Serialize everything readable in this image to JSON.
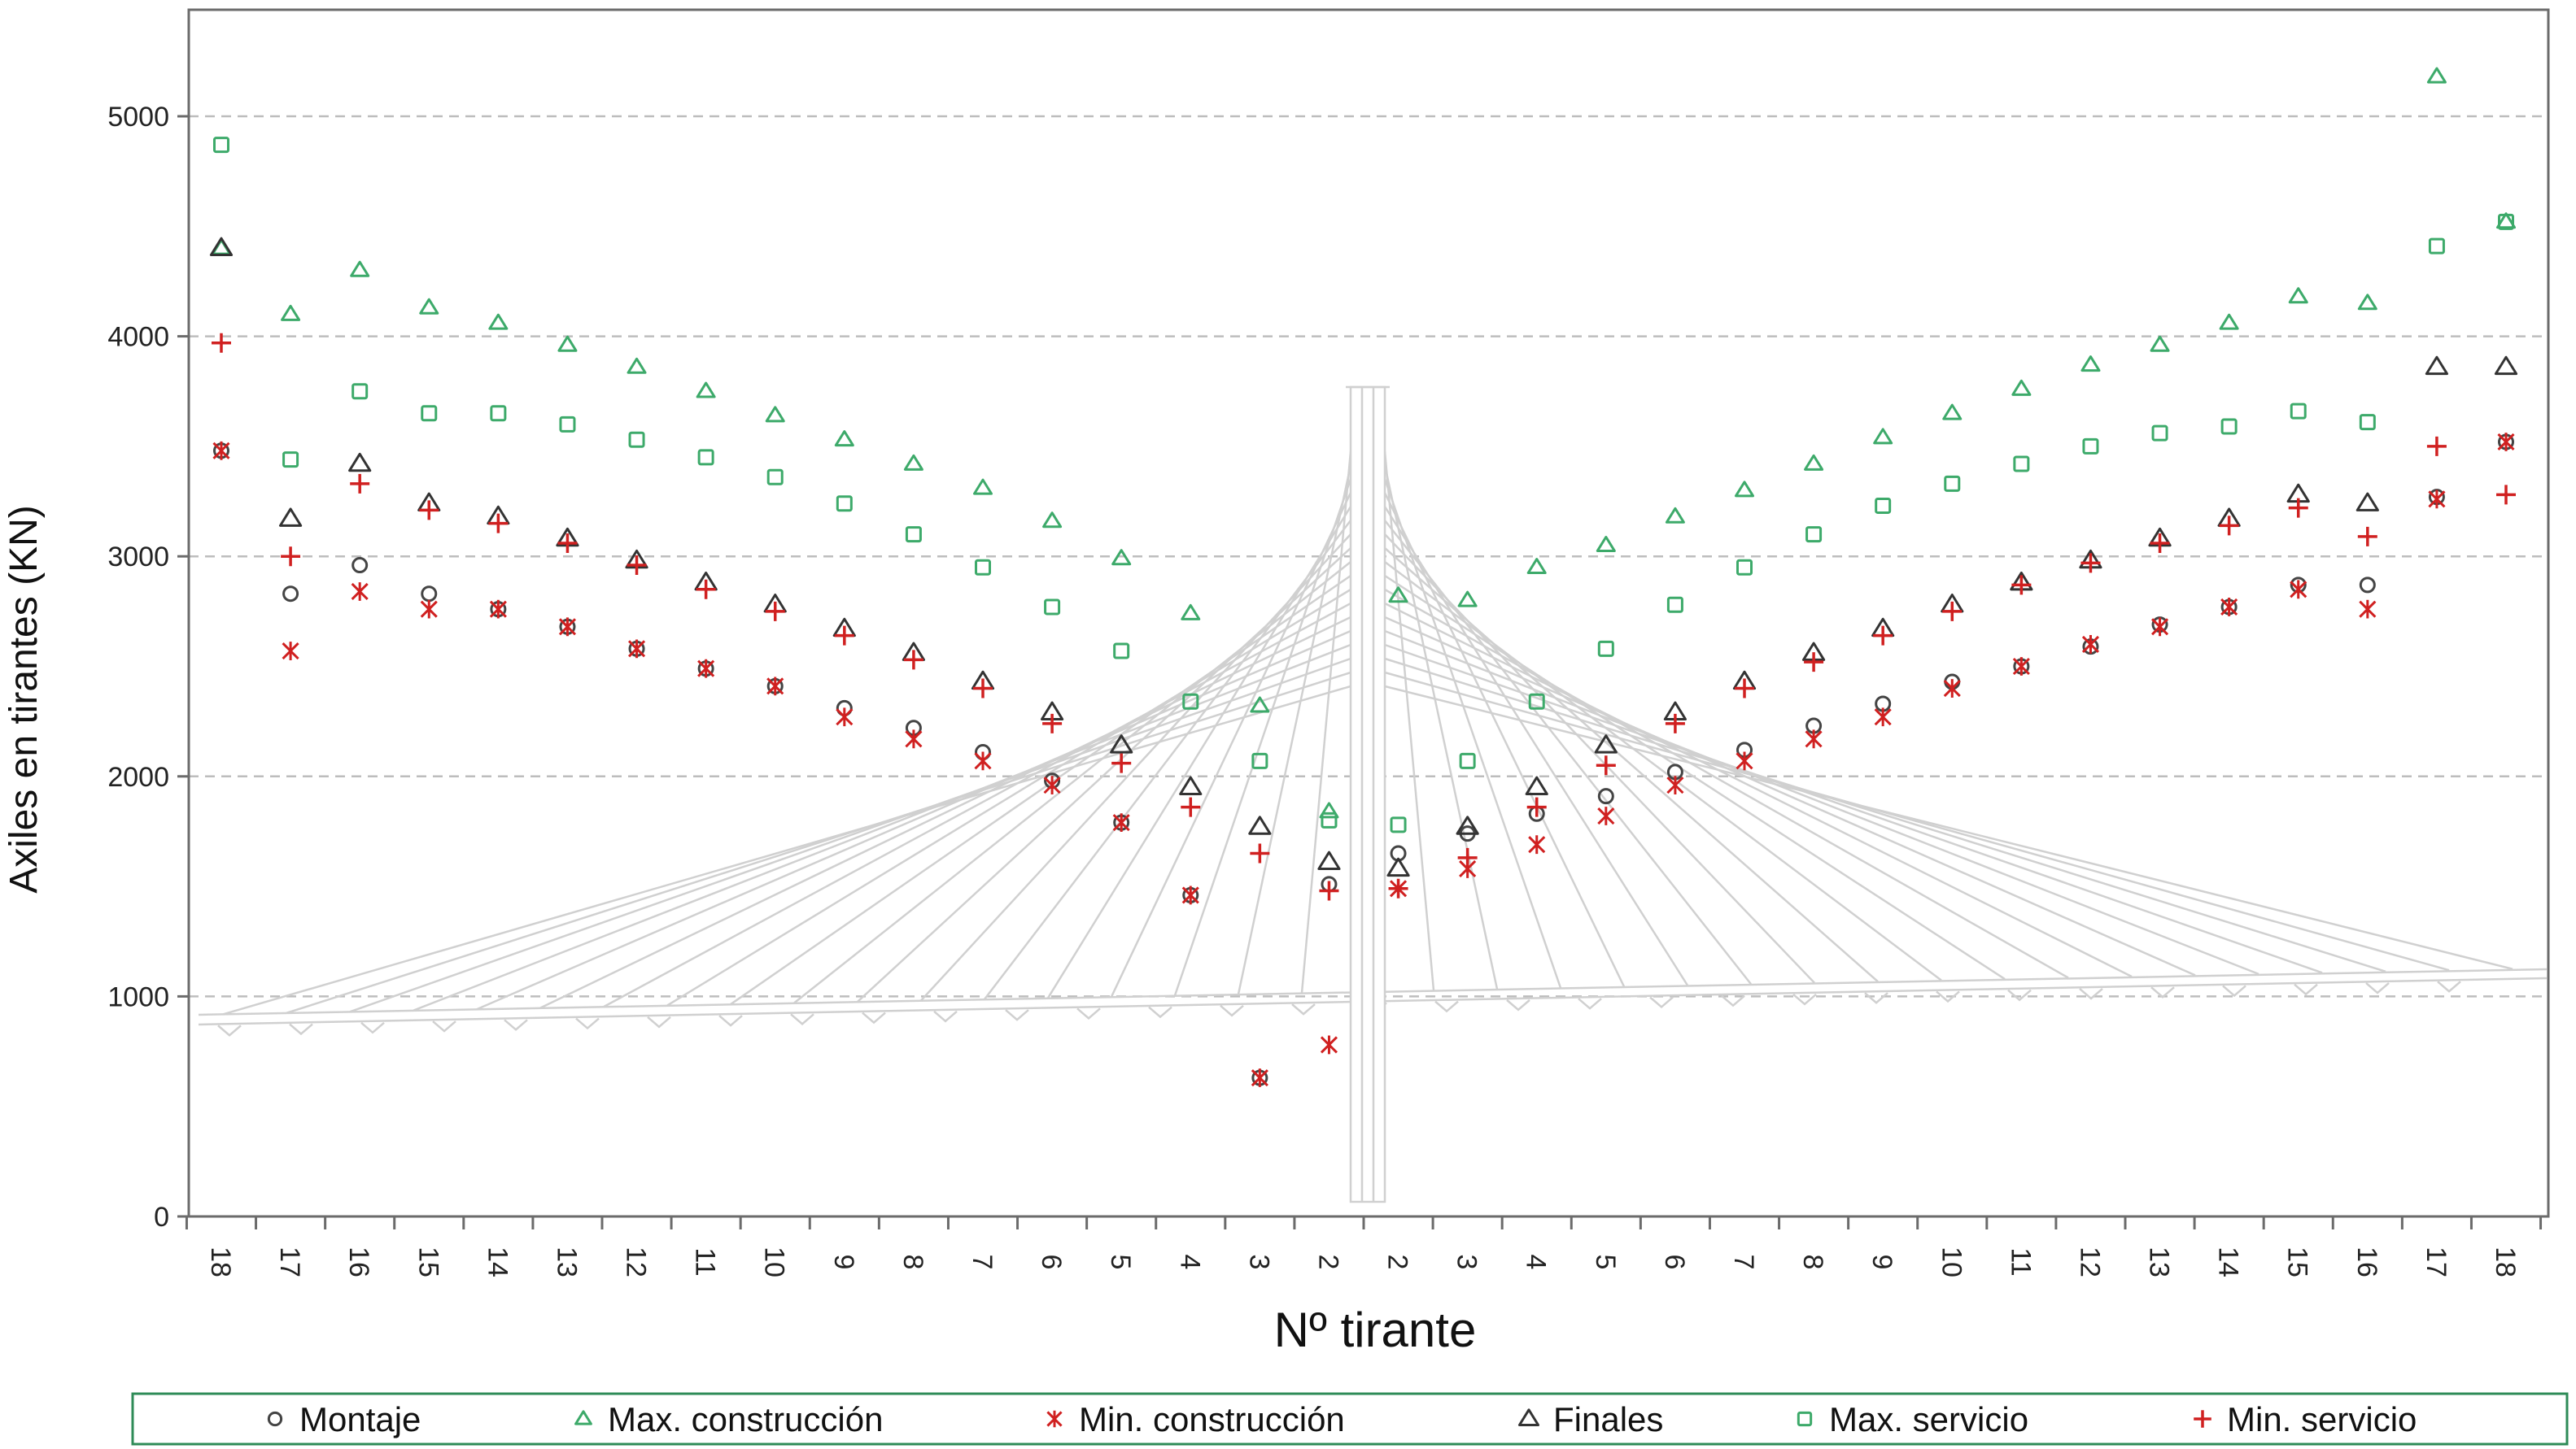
{
  "chart_data": {
    "type": "scatter",
    "title": "",
    "xlabel": "Nº tirante",
    "ylabel": "Axiles en tirantes (KN)",
    "ylim": [
      0,
      5000
    ],
    "yticks": [
      "0",
      "1000",
      "2000",
      "3000",
      "4000",
      "5000"
    ],
    "categories": [
      "18",
      "17",
      "16",
      "15",
      "14",
      "13",
      "12",
      "11",
      "10",
      "9",
      "8",
      "7",
      "6",
      "5",
      "4",
      "3",
      "2",
      "2",
      "3",
      "4",
      "5",
      "6",
      "7",
      "8",
      "9",
      "10",
      "11",
      "12",
      "13",
      "14",
      "15",
      "16",
      "17",
      "18"
    ],
    "grid": "horizontal dashed",
    "legend_position": "bottom",
    "series": [
      {
        "name": "Montaje",
        "marker": "circle",
        "color": "#444444",
        "values": [
          3480,
          2830,
          2960,
          2830,
          2760,
          2680,
          2580,
          2490,
          2410,
          2310,
          2220,
          2110,
          1980,
          1790,
          1460,
          630,
          1510,
          1650,
          1740,
          1830,
          1910,
          2020,
          2120,
          2230,
          2330,
          2430,
          2500,
          2590,
          2690,
          2770,
          2870,
          2870,
          3270,
          3520
        ]
      },
      {
        "name": "Max. construcción",
        "marker": "triangle",
        "color": "#3daa6a",
        "values": [
          4400,
          4100,
          4300,
          4130,
          4060,
          3960,
          3860,
          3750,
          3640,
          3530,
          3420,
          3310,
          3160,
          2990,
          2740,
          2320,
          1840,
          2820,
          2800,
          2950,
          3050,
          3180,
          3300,
          3420,
          3540,
          3650,
          3760,
          3870,
          3960,
          4060,
          4180,
          4150,
          5180,
          4520
        ]
      },
      {
        "name": "Min. construcción",
        "marker": "asterisk",
        "color": "#d02020",
        "values": [
          3480,
          2570,
          2840,
          2760,
          2760,
          2680,
          2580,
          2490,
          2410,
          2270,
          2170,
          2070,
          1960,
          1790,
          1460,
          630,
          780,
          1490,
          1580,
          1690,
          1820,
          1960,
          2070,
          2170,
          2270,
          2400,
          2500,
          2600,
          2680,
          2770,
          2850,
          2760,
          3260,
          3520
        ]
      },
      {
        "name": "Finales",
        "marker": "triangle",
        "color": "#333333",
        "values": [
          4400,
          3170,
          3420,
          3240,
          3180,
          3080,
          2980,
          2880,
          2780,
          2670,
          2560,
          2430,
          2290,
          2140,
          1950,
          1770,
          1610,
          1580,
          1770,
          1950,
          2140,
          2290,
          2430,
          2560,
          2670,
          2780,
          2880,
          2980,
          3080,
          3170,
          3280,
          3240,
          3860,
          3860
        ]
      },
      {
        "name": "Max. servicio",
        "marker": "square",
        "color": "#3daa6a",
        "values": [
          4870,
          3440,
          3750,
          3650,
          3650,
          3600,
          3530,
          3450,
          3360,
          3240,
          3100,
          2950,
          2770,
          2570,
          2340,
          2070,
          1800,
          1780,
          2070,
          2340,
          2580,
          2780,
          2950,
          3100,
          3230,
          3330,
          3420,
          3500,
          3560,
          3590,
          3660,
          3610,
          4410,
          4520
        ]
      },
      {
        "name": "Min. servicio",
        "marker": "plus",
        "color": "#d02020",
        "values": [
          3970,
          3000,
          3330,
          3210,
          3150,
          3060,
          2960,
          2850,
          2750,
          2640,
          2530,
          2400,
          2240,
          2060,
          1860,
          1650,
          1480,
          1490,
          1630,
          1860,
          2050,
          2240,
          2400,
          2520,
          2640,
          2750,
          2870,
          2970,
          3060,
          3140,
          3220,
          3090,
          3500,
          3280
        ]
      }
    ]
  }
}
